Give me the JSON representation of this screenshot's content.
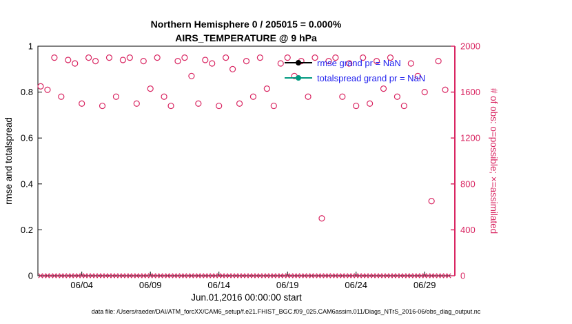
{
  "title": {
    "line1": "Northern Hemisphere 0 / 205015 = 0.000%",
    "line2": "AIRS_TEMPERATURE @ 9 hPa"
  },
  "axes": {
    "left": {
      "label": "rmse and totalspread",
      "ticks": [
        0,
        0.2,
        0.4,
        0.6,
        0.8,
        1
      ],
      "lim": [
        0,
        1
      ],
      "color": "#000000"
    },
    "right": {
      "label": "# of obs: o=possible; ×=assimilated",
      "ticks": [
        0,
        400,
        800,
        1200,
        1600,
        2000
      ],
      "lim": [
        0,
        2000
      ],
      "color": "#d92662"
    },
    "x": {
      "label": "Jun.01,2016 00:00:00 start",
      "tick_labels": [
        "06/04",
        "06/09",
        "06/14",
        "06/19",
        "06/24",
        "06/29"
      ],
      "tick_days": [
        4,
        9,
        14,
        19,
        24,
        29
      ],
      "lim": [
        0.8,
        31.2
      ]
    }
  },
  "legend": {
    "entries": [
      {
        "label": "rmse grand pr = NaN",
        "marker_color": "#000000",
        "text_color": "#2020ee"
      },
      {
        "label": "totalspread grand pr = NaN",
        "marker_color": "#009980",
        "text_color": "#2020ee"
      }
    ]
  },
  "footer": "data file: /Users/raeder/DAI/ATM_forcXX/CAM6_setup/f.e21.FHIST_BGC.f09_025.CAM6assim.011/Diags_NTrS_2016-06/obs_diag_output.nc",
  "chart_data": {
    "type": "scatter",
    "title": "Northern Hemisphere 0 / 205015 = 0.000% | AIRS_TEMPERATURE @ 9 hPa",
    "xlabel": "Jun.01,2016 00:00:00 start",
    "ylabel_left": "rmse and totalspread",
    "ylabel_right": "# of obs: o=possible; ×=assimilated",
    "xlim_days_of_june": [
      0.8,
      31.2
    ],
    "ylim_left": [
      0,
      1
    ],
    "ylim_right": [
      0,
      2000
    ],
    "grid": false,
    "legend_position": "inside-top-center",
    "series": [
      {
        "name": "possible observations",
        "marker": "o",
        "color": "#d92662",
        "axis": "right",
        "x": [
          1,
          1.5,
          2,
          2.5,
          3,
          3.5,
          4,
          4.5,
          5,
          5.5,
          6,
          6.5,
          7,
          7.5,
          8,
          8.5,
          9,
          9.5,
          10,
          10.5,
          11,
          11.5,
          12,
          12.5,
          13,
          13.5,
          14,
          14.5,
          15,
          15.5,
          16,
          16.5,
          17,
          17.5,
          18,
          18.5,
          19,
          19.5,
          20,
          20.5,
          21,
          21.5,
          22,
          22.5,
          23,
          23.5,
          24,
          24.5,
          25,
          25.5,
          26,
          26.5,
          27,
          27.5,
          28,
          28.5,
          29,
          29.5,
          30,
          30.5
        ],
        "y": [
          1650,
          1620,
          1900,
          1560,
          1880,
          1850,
          1500,
          1900,
          1870,
          1480,
          1900,
          1560,
          1880,
          1900,
          1500,
          1870,
          1630,
          1900,
          1560,
          1480,
          1870,
          1900,
          1740,
          1500,
          1880,
          1850,
          1480,
          1900,
          1800,
          1500,
          1870,
          1560,
          1900,
          1630,
          1480,
          1850,
          1900,
          1740,
          1870,
          1560,
          1900,
          500,
          1870,
          1900,
          1560,
          1850,
          1480,
          1900,
          1500,
          1870,
          1630,
          1900,
          1560,
          1480,
          1850,
          1740,
          1600,
          650,
          1870,
          1620
        ]
      },
      {
        "name": "assimilated observations",
        "marker": "x",
        "color": "#d92662",
        "axis": "right",
        "x_start": 1.0,
        "x_step": 0.25,
        "count": 120,
        "y_value": 0
      }
    ],
    "rmse_grand_prior": "NaN",
    "totalspread_grand_prior": "NaN"
  }
}
